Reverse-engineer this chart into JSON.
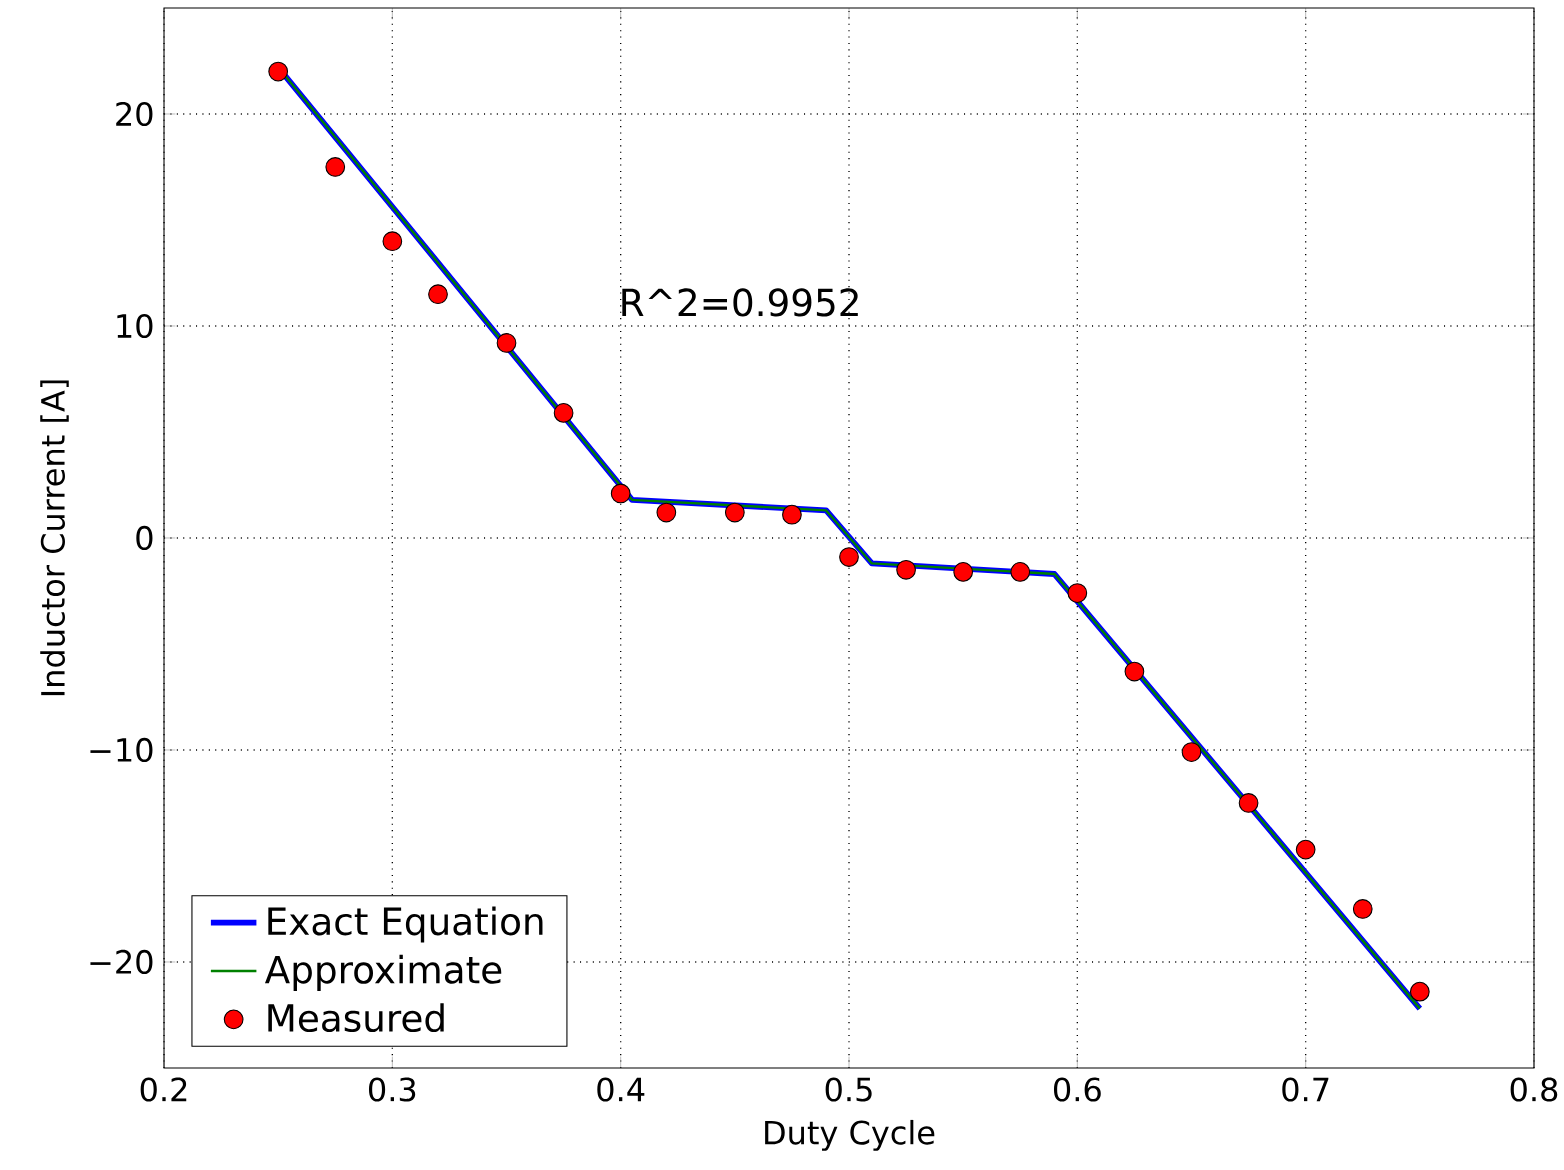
{
  "chart_data": {
    "type": "line",
    "xlabel": "Duty Cycle",
    "ylabel": "Inductor Current [A]",
    "annotations": [
      "R^2=0.9952"
    ],
    "xlim": [
      0.2,
      0.8
    ],
    "ylim": [
      -25,
      25
    ],
    "xticks": [
      0.2,
      0.3,
      0.4,
      0.5,
      0.6,
      0.7,
      0.8
    ],
    "yticks": [
      {
        "value": -20,
        "label": "−20"
      },
      {
        "value": -10,
        "label": "−10"
      },
      0,
      10,
      20
    ],
    "grid": true,
    "legend": "bottom left",
    "series": [
      {
        "name": "Exact Equation",
        "color": "#0000ff",
        "marker": "none",
        "line_style": "solid",
        "x": [
          0.25,
          0.405,
          0.49,
          0.51,
          0.59,
          0.75
        ],
        "values": [
          22.2,
          1.8,
          1.3,
          -1.2,
          -1.7,
          -22.2
        ]
      },
      {
        "name": "Approximate",
        "color": "#008000",
        "marker": "none",
        "line_style": "solid",
        "x": [
          0.25,
          0.405,
          0.49,
          0.51,
          0.59,
          0.75
        ],
        "values": [
          22.2,
          1.8,
          1.3,
          -1.2,
          -1.7,
          -22.2
        ]
      },
      {
        "name": "Measured",
        "type": "scatter",
        "color": "#ff0000",
        "marker": "circle",
        "x": [
          0.25,
          0.275,
          0.3,
          0.32,
          0.35,
          0.375,
          0.4,
          0.42,
          0.45,
          0.475,
          0.5,
          0.525,
          0.55,
          0.575,
          0.6,
          0.625,
          0.65,
          0.675,
          0.7,
          0.725,
          0.75
        ],
        "values": [
          22.0,
          17.5,
          14.0,
          11.5,
          9.2,
          5.9,
          2.1,
          1.2,
          1.2,
          1.1,
          -0.9,
          -1.5,
          -1.6,
          -1.6,
          -2.6,
          -6.3,
          -10.1,
          -12.5,
          -14.7,
          -17.5,
          -21.4
        ]
      }
    ]
  }
}
